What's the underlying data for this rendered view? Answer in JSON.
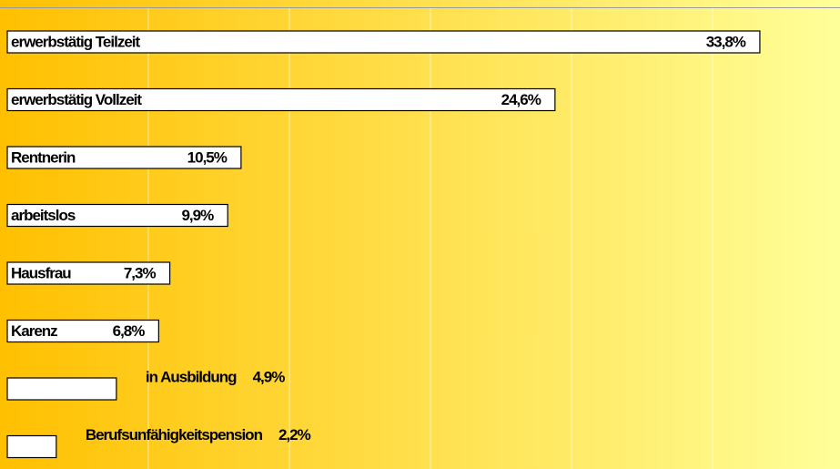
{
  "chart_data": {
    "type": "bar",
    "orientation": "horizontal",
    "categories": [
      "erwerbstätig Teilzeit",
      "erwerbstätig Vollzeit",
      "Rentnerin",
      "arbeitslos",
      "Hausfrau",
      "Karenz",
      "in Ausbildung",
      "Berufsunfähigkeitspension"
    ],
    "values": [
      33.8,
      24.6,
      10.5,
      9.9,
      7.3,
      6.8,
      4.9,
      2.2
    ],
    "value_labels": [
      "33,8%",
      "24,6%",
      "10,5%",
      "9,9%",
      "7,3%",
      "6,8%",
      "4,9%",
      "2,2%"
    ],
    "color": "#ffffff",
    "xlim": [
      0,
      37.4
    ]
  }
}
